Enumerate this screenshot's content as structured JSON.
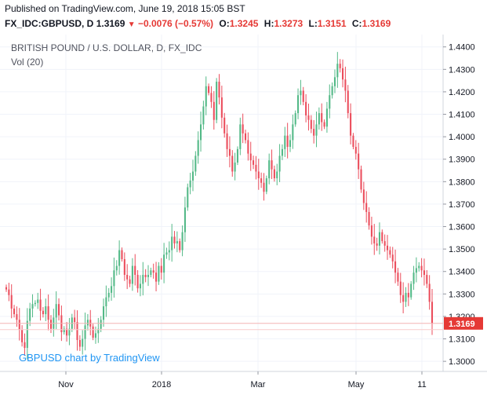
{
  "header": {
    "published": "Published on TradingView.com, June 19, 2018 15:05 BST",
    "symbol": "FX_IDC:GBPUSD, D",
    "last": "1.3169",
    "change": "−0.0076 (−0.57%)",
    "o_label": "O:",
    "o_value": "1.3245",
    "h_label": "H:",
    "h_value": "1.3273",
    "l_label": "L:",
    "l_value": "1.3151",
    "c_label": "C:",
    "c_value": "1.3169"
  },
  "chart_data": {
    "type": "candlestick",
    "title": "BRITISH POUND / U.S. DOLLAR, D, FX_IDC",
    "subtitle": "Vol (20)",
    "watermark": "GBPUSD chart by TradingView",
    "ylim": [
      1.2955,
      1.4455
    ],
    "y_ticks": [
      "1.4400",
      "1.4300",
      "1.4200",
      "1.4100",
      "1.4000",
      "1.3900",
      "1.3800",
      "1.3700",
      "1.3600",
      "1.3500",
      "1.3400",
      "1.3300",
      "1.3200",
      "1.3100",
      "1.3000"
    ],
    "x_ticks": [
      "Nov",
      "2018",
      "Mar",
      "May",
      "11"
    ],
    "last_price_label": "1.3169",
    "colors": {
      "up": "#53b987",
      "down": "#eb4d5c",
      "last_price": "#e53935",
      "grid": "#f0f3fa",
      "axis_text": "#131722"
    },
    "closes": [
      1.332,
      1.3295,
      1.3235,
      1.321,
      1.3185,
      1.314,
      1.3085,
      1.306,
      1.318,
      1.3235,
      1.3255,
      1.326,
      1.3275,
      1.3225,
      1.321,
      1.3245,
      1.3185,
      1.3145,
      1.3195,
      1.3255,
      1.3205,
      1.313,
      1.3145,
      1.3115,
      1.3145,
      1.3195,
      1.3175,
      1.3095,
      1.3065,
      1.31,
      1.316,
      1.3185,
      1.3155,
      1.3105,
      1.3125,
      1.3145,
      1.3185,
      1.3245,
      1.3285,
      1.3305,
      1.3335,
      1.3405,
      1.3425,
      1.3495,
      1.3455,
      1.3385,
      1.3365,
      1.3345,
      1.3425,
      1.3385,
      1.3325,
      1.3345,
      1.3385,
      1.3375,
      1.3385,
      1.3405,
      1.3395,
      1.3355,
      1.3425,
      1.3395,
      1.3475,
      1.3485,
      1.3495,
      1.3555,
      1.3525,
      1.3535,
      1.3495,
      1.3575,
      1.3685,
      1.3775,
      1.3805,
      1.3845,
      1.3915,
      1.3985,
      1.4055,
      1.4135,
      1.4225,
      1.4195,
      1.4155,
      1.4075,
      1.4245,
      1.4175,
      1.4085,
      1.4015,
      1.3945,
      1.3915,
      1.3845,
      1.3885,
      1.3945,
      1.4055,
      1.4015,
      1.3985,
      1.3925,
      1.3895,
      1.3875,
      1.3845,
      1.3815,
      1.3795,
      1.3755,
      1.3815,
      1.3895,
      1.3855,
      1.3815,
      1.3845,
      1.3915,
      1.3945,
      1.4005,
      1.3955,
      1.3985,
      1.4055,
      1.4105,
      1.4185,
      1.4205,
      1.4155,
      1.4095,
      1.4075,
      1.4035,
      1.4005,
      1.4055,
      1.4105,
      1.4065,
      1.4045,
      1.4125,
      1.4185,
      1.4225,
      1.4265,
      1.4325,
      1.4305,
      1.4255,
      1.4205,
      1.4105,
      1.4005,
      1.3955,
      1.3925,
      1.3855,
      1.3765,
      1.3705,
      1.3665,
      1.3605,
      1.3555,
      1.3525,
      1.3515,
      1.3575,
      1.3535,
      1.3515,
      1.3495,
      1.3475,
      1.3445,
      1.3395,
      1.3355,
      1.3295,
      1.3265,
      1.3305,
      1.3285,
      1.3345,
      1.3395,
      1.3415,
      1.3425,
      1.3405,
      1.3385,
      1.3345,
      1.3265,
      1.3169
    ]
  }
}
